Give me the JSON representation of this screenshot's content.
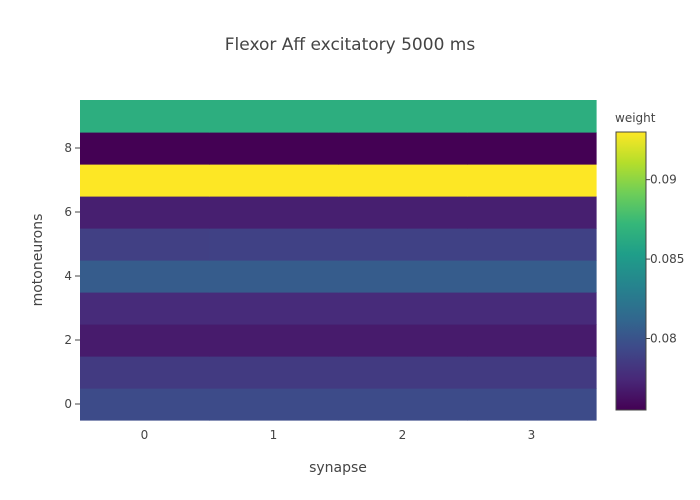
{
  "chart_data": {
    "type": "heatmap",
    "title": "Flexor Aff excitatory 5000 ms",
    "xlabel": "synapse",
    "ylabel": "motoneurons",
    "x": [
      0,
      1,
      2,
      3
    ],
    "y": [
      0,
      1,
      2,
      3,
      4,
      5,
      6,
      7,
      8,
      9
    ],
    "xlim": [
      -0.5,
      3.5
    ],
    "ylim": [
      -0.5,
      9.5
    ],
    "x_ticks": [
      0,
      1,
      2,
      3
    ],
    "y_ticks": [
      0,
      2,
      4,
      6,
      8
    ],
    "z": [
      [
        0.0795,
        0.0795,
        0.0795,
        0.0795
      ],
      [
        0.0785,
        0.0785,
        0.0785,
        0.0785
      ],
      [
        0.0768,
        0.0768,
        0.0768,
        0.0768
      ],
      [
        0.0776,
        0.0776,
        0.0776,
        0.0776
      ],
      [
        0.0805,
        0.0805,
        0.0805,
        0.0805
      ],
      [
        0.0788,
        0.0789,
        0.0789,
        0.0789
      ],
      [
        0.077,
        0.077,
        0.077,
        0.077
      ],
      [
        0.093,
        0.093,
        0.093,
        0.093
      ],
      [
        0.0755,
        0.0755,
        0.0755,
        0.0755
      ],
      [
        0.0865,
        0.0865,
        0.0865,
        0.0865
      ]
    ],
    "colorscale": "Viridis",
    "zmin": 0.0755,
    "zmax": 0.093,
    "colorbar": {
      "title": "weight",
      "ticks": [
        0.08,
        0.085,
        0.09
      ],
      "tick_labels": [
        "0.08",
        "0.085",
        "0.09"
      ]
    },
    "grid": false
  }
}
